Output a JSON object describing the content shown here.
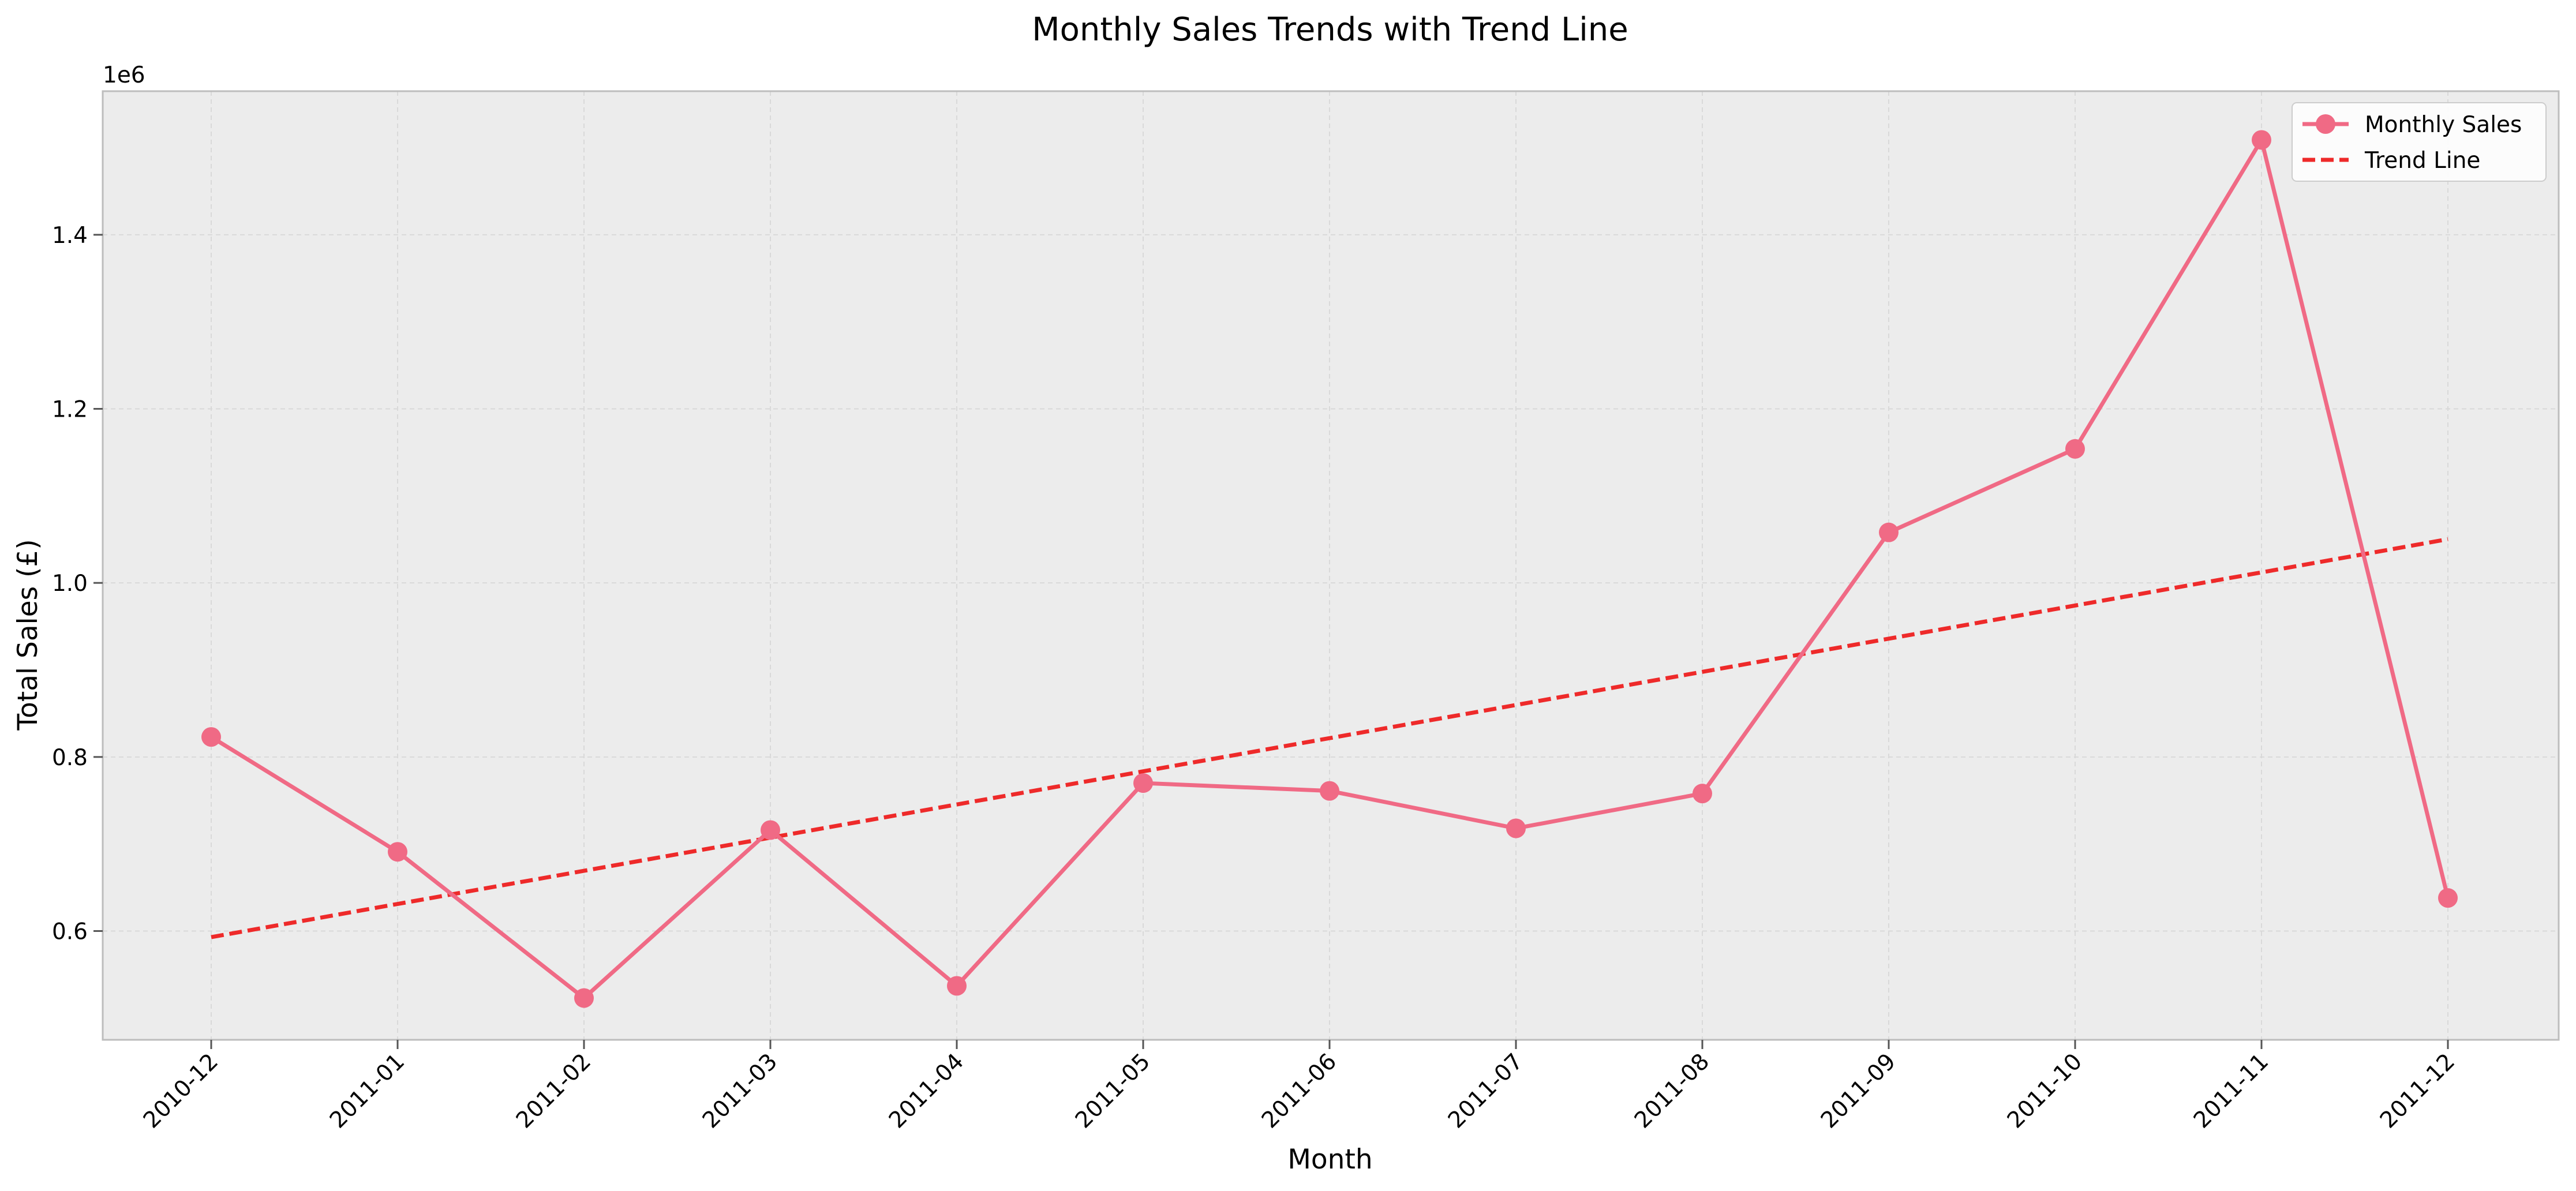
{
  "chart_data": {
    "type": "line",
    "title": "Monthly Sales Trends with Trend Line",
    "xlabel": "Month",
    "ylabel": "Total Sales (£)",
    "y_offset_label": "1e6",
    "categories": [
      "2010-12",
      "2011-01",
      "2011-02",
      "2011-03",
      "2011-04",
      "2011-05",
      "2011-06",
      "2011-07",
      "2011-08",
      "2011-09",
      "2011-10",
      "2011-11",
      "2011-12"
    ],
    "ylim": [
      0.475,
      1.565
    ],
    "yticks": [
      0.6,
      0.8,
      1.0,
      1.2,
      1.4
    ],
    "ytick_labels": [
      "0.6",
      "0.8",
      "1.0",
      "1.2",
      "1.4"
    ],
    "grid": true,
    "legend_position": "top-right",
    "series": [
      {
        "name": "Monthly Sales",
        "style": "solid-with-markers",
        "color": "#f06a85",
        "values": [
          0.823,
          0.691,
          0.523,
          0.716,
          0.537,
          0.77,
          0.761,
          0.718,
          0.758,
          1.058,
          1.154,
          1.509,
          0.638
        ]
      },
      {
        "name": "Trend Line",
        "style": "dashed",
        "color": "#ee2a2a",
        "values": [
          0.593,
          0.6311,
          0.6692,
          0.7073,
          0.7454,
          0.7835,
          0.8216,
          0.8597,
          0.8978,
          0.9359,
          0.974,
          1.0121,
          1.0502
        ]
      }
    ],
    "colors": {
      "plot_background": "#ececec",
      "grid": "#d9d9d9",
      "frame": "#bdbdbd"
    }
  }
}
